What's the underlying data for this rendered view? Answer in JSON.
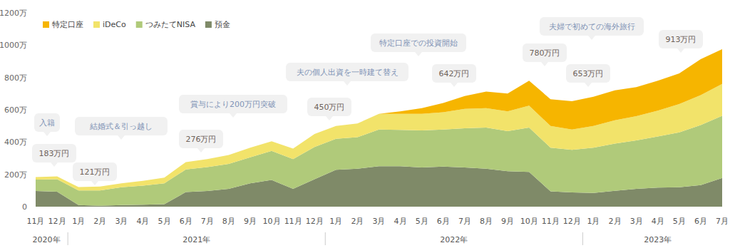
{
  "chart_data": {
    "type": "area",
    "stacked": true,
    "grid": false,
    "legend": "top-left",
    "categories": [
      "11月",
      "12月",
      "1月",
      "2月",
      "3月",
      "4月",
      "5月",
      "6月",
      "7月",
      "8月",
      "9月",
      "10月",
      "11月",
      "12月",
      "1月",
      "2月",
      "3月",
      "4月",
      "5月",
      "6月",
      "7月",
      "8月",
      "9月",
      "10月",
      "11月",
      "12月",
      "1月",
      "2月",
      "3月",
      "4月",
      "5月",
      "6月",
      "7月"
    ],
    "x_groups": [
      {
        "label": "2020年",
        "count": 2
      },
      {
        "label": "2021年",
        "count": 12
      },
      {
        "label": "2022年",
        "count": 12
      },
      {
        "label": "2023年",
        "count": 7
      }
    ],
    "ylim": [
      0,
      1200
    ],
    "yticks": [
      0,
      {
        "value": 200,
        "label": "200万"
      },
      {
        "value": 400,
        "label": "400万"
      },
      {
        "value": 600,
        "label": "600万"
      },
      {
        "value": 800,
        "label": "800万"
      },
      {
        "value": 1000,
        "label": "1000万"
      },
      {
        "value": 1200,
        "label": "1200万"
      }
    ],
    "series": [
      {
        "name": "特定口座",
        "color": "#f6b500",
        "values": [
          0,
          0,
          0,
          0,
          0,
          0,
          0,
          0,
          0,
          0,
          0,
          0,
          0,
          0,
          0,
          0,
          0,
          15,
          35,
          57,
          80,
          102,
          110,
          155,
          165,
          175,
          180,
          185,
          180,
          185,
          190,
          223,
          215
        ]
      },
      {
        "name": "iDeCo",
        "color": "#f2e36a",
        "values": [
          15,
          17,
          21,
          25,
          25,
          30,
          35,
          46,
          50,
          55,
          60,
          60,
          65,
          80,
          80,
          85,
          97,
          100,
          103,
          107,
          120,
          120,
          122,
          135,
          135,
          126,
          135,
          145,
          150,
          160,
          175,
          185,
          198
        ]
      },
      {
        "name": "つみたてNISA",
        "color": "#b0ca7a",
        "values": [
          71,
          77,
          90,
          95,
          110,
          118,
          130,
          140,
          148,
          155,
          160,
          180,
          185,
          200,
          192,
          195,
          228,
          225,
          229,
          230,
          242,
          255,
          248,
          275,
          270,
          264,
          280,
          292,
          300,
          317,
          340,
          372,
          384
        ]
      },
      {
        "name": "預金",
        "color": "#7f8a68",
        "values": [
          97,
          93,
          10,
          5,
          10,
          12,
          15,
          90,
          97,
          110,
          145,
          165,
          110,
          170,
          228,
          235,
          250,
          250,
          243,
          248,
          243,
          235,
          220,
          215,
          95,
          88,
          85,
          98,
          110,
          118,
          120,
          133,
          178
        ]
      }
    ],
    "annotations": [
      "入籍",
      "183万円",
      "結婚式＆引っ越し",
      "121万円",
      "賞与により200万円突破",
      "276万円",
      "夫の個人出資を一時建て替え",
      "450万円",
      "特定口座での投資開始",
      "642万円",
      "780万円",
      "653万円",
      "夫婦で初めての海外旅行",
      "913万円"
    ]
  }
}
